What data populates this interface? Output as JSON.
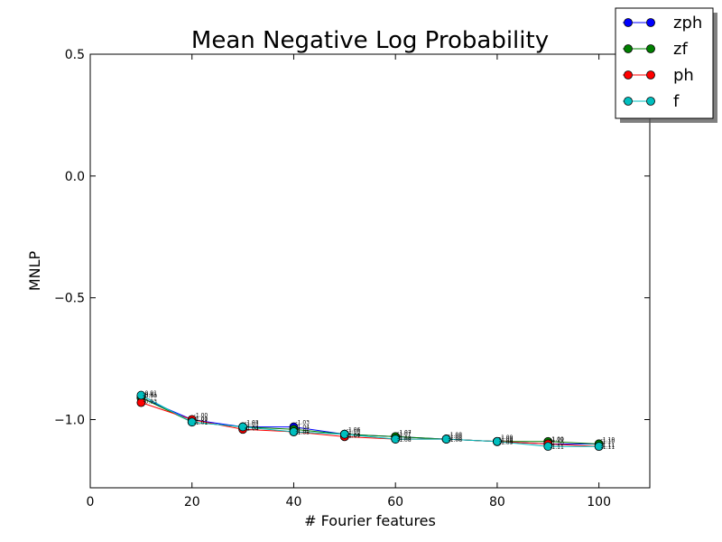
{
  "chart_data": {
    "type": "line",
    "title": "Mean Negative Log Probability",
    "xlabel": "# Fourier features",
    "ylabel": "MNLP",
    "xlim": [
      0,
      110
    ],
    "ylim": [
      -1.28,
      0.5
    ],
    "xticks": [
      0,
      20,
      40,
      60,
      80,
      100
    ],
    "yticks": [
      0.5,
      0.0,
      -0.5,
      -1.0
    ],
    "ytick_labels": [
      "0.5",
      "0.0",
      "−0.5",
      "−1.0"
    ],
    "grid": false,
    "legend_position": "top-right",
    "x": [
      10,
      20,
      30,
      40,
      50,
      60,
      70,
      80,
      90,
      100
    ],
    "series": [
      {
        "name": "zph",
        "color": "#0000ff",
        "values": [
          -0.91,
          -1.0,
          -1.03,
          -1.03,
          -1.06,
          -1.07,
          -1.08,
          -1.09,
          -1.1,
          -1.1
        ],
        "labels": [
          "-0.91",
          "-1.00",
          "-1.03",
          "-1.03",
          "-1.06",
          "-1.07",
          "-1.08",
          "-1.09",
          "-1.10",
          "-1.10"
        ]
      },
      {
        "name": "zf",
        "color": "#008000",
        "values": [
          -0.91,
          -1.01,
          -1.03,
          -1.04,
          -1.06,
          -1.07,
          -1.08,
          -1.09,
          -1.09,
          -1.1
        ],
        "labels": [
          "-0.91",
          "-1.01",
          "-1.03",
          "-1.04",
          "-1.06",
          "-1.07",
          "-1.08",
          "-1.09",
          "-1.09",
          "-1.10"
        ]
      },
      {
        "name": "ph",
        "color": "#ff0000",
        "values": [
          -0.93,
          -1.0,
          -1.04,
          -1.05,
          -1.07,
          -1.08,
          -1.08,
          -1.09,
          -1.1,
          -1.11
        ],
        "labels": [
          "-0.93",
          "-1.00",
          "-1.04",
          "-1.05",
          "-1.07",
          "-1.08",
          "-1.08",
          "-1.09",
          "-1.10",
          "-1.11"
        ]
      },
      {
        "name": "f",
        "color": "#00bfbf",
        "values": [
          -0.9,
          -1.01,
          -1.03,
          -1.05,
          -1.06,
          -1.08,
          -1.08,
          -1.09,
          -1.11,
          -1.11
        ],
        "labels": [
          "-0.90",
          "-1.01",
          "-1.03",
          "-1.05",
          "-1.06",
          "-1.08",
          "-1.08",
          "-1.09",
          "-1.11",
          "-1.11"
        ]
      }
    ]
  }
}
